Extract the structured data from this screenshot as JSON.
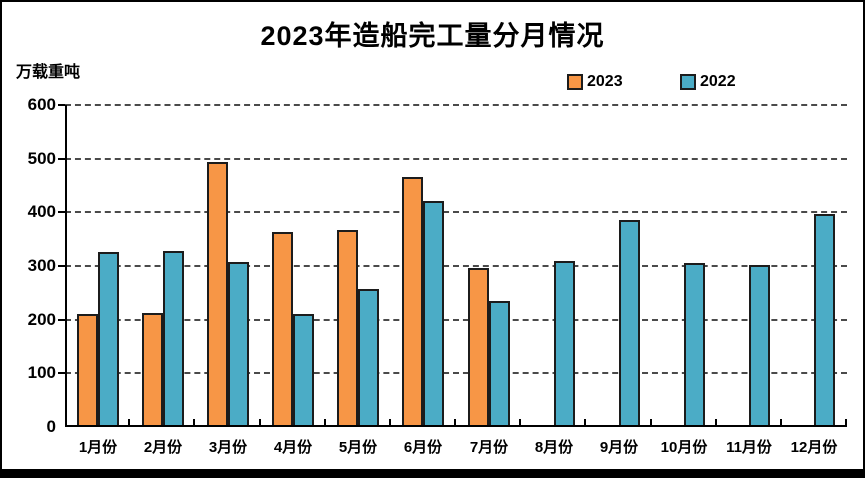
{
  "chart_data": {
    "type": "bar",
    "title": "2023年造船完工量分月情况",
    "ylabel": "万载重吨",
    "xlabel": "",
    "categories": [
      "1月份",
      "2月份",
      "3月份",
      "4月份",
      "5月份",
      "6月份",
      "7月份",
      "8月份",
      "9月份",
      "10月份",
      "11月份",
      "12月份"
    ],
    "series": [
      {
        "name": "2023",
        "color": "#F79646",
        "values": [
          211,
          213,
          494,
          363,
          367,
          466,
          296,
          null,
          null,
          null,
          null,
          null
        ]
      },
      {
        "name": "2022",
        "color": "#4BACC6",
        "values": [
          326,
          328,
          307,
          211,
          257,
          421,
          234,
          310,
          386,
          306,
          302,
          396
        ]
      }
    ],
    "ylim": [
      0,
      600
    ],
    "yticks": [
      0,
      100,
      200,
      300,
      400,
      500,
      600
    ],
    "grid": "horizontal-dashed",
    "legend_position": "top-right"
  },
  "colors": {
    "bar_border": "#1c1c1c",
    "axis": "#000000",
    "grid": "#4a4a4a",
    "background": "#ffffff",
    "bottom_strip": "#000000"
  }
}
